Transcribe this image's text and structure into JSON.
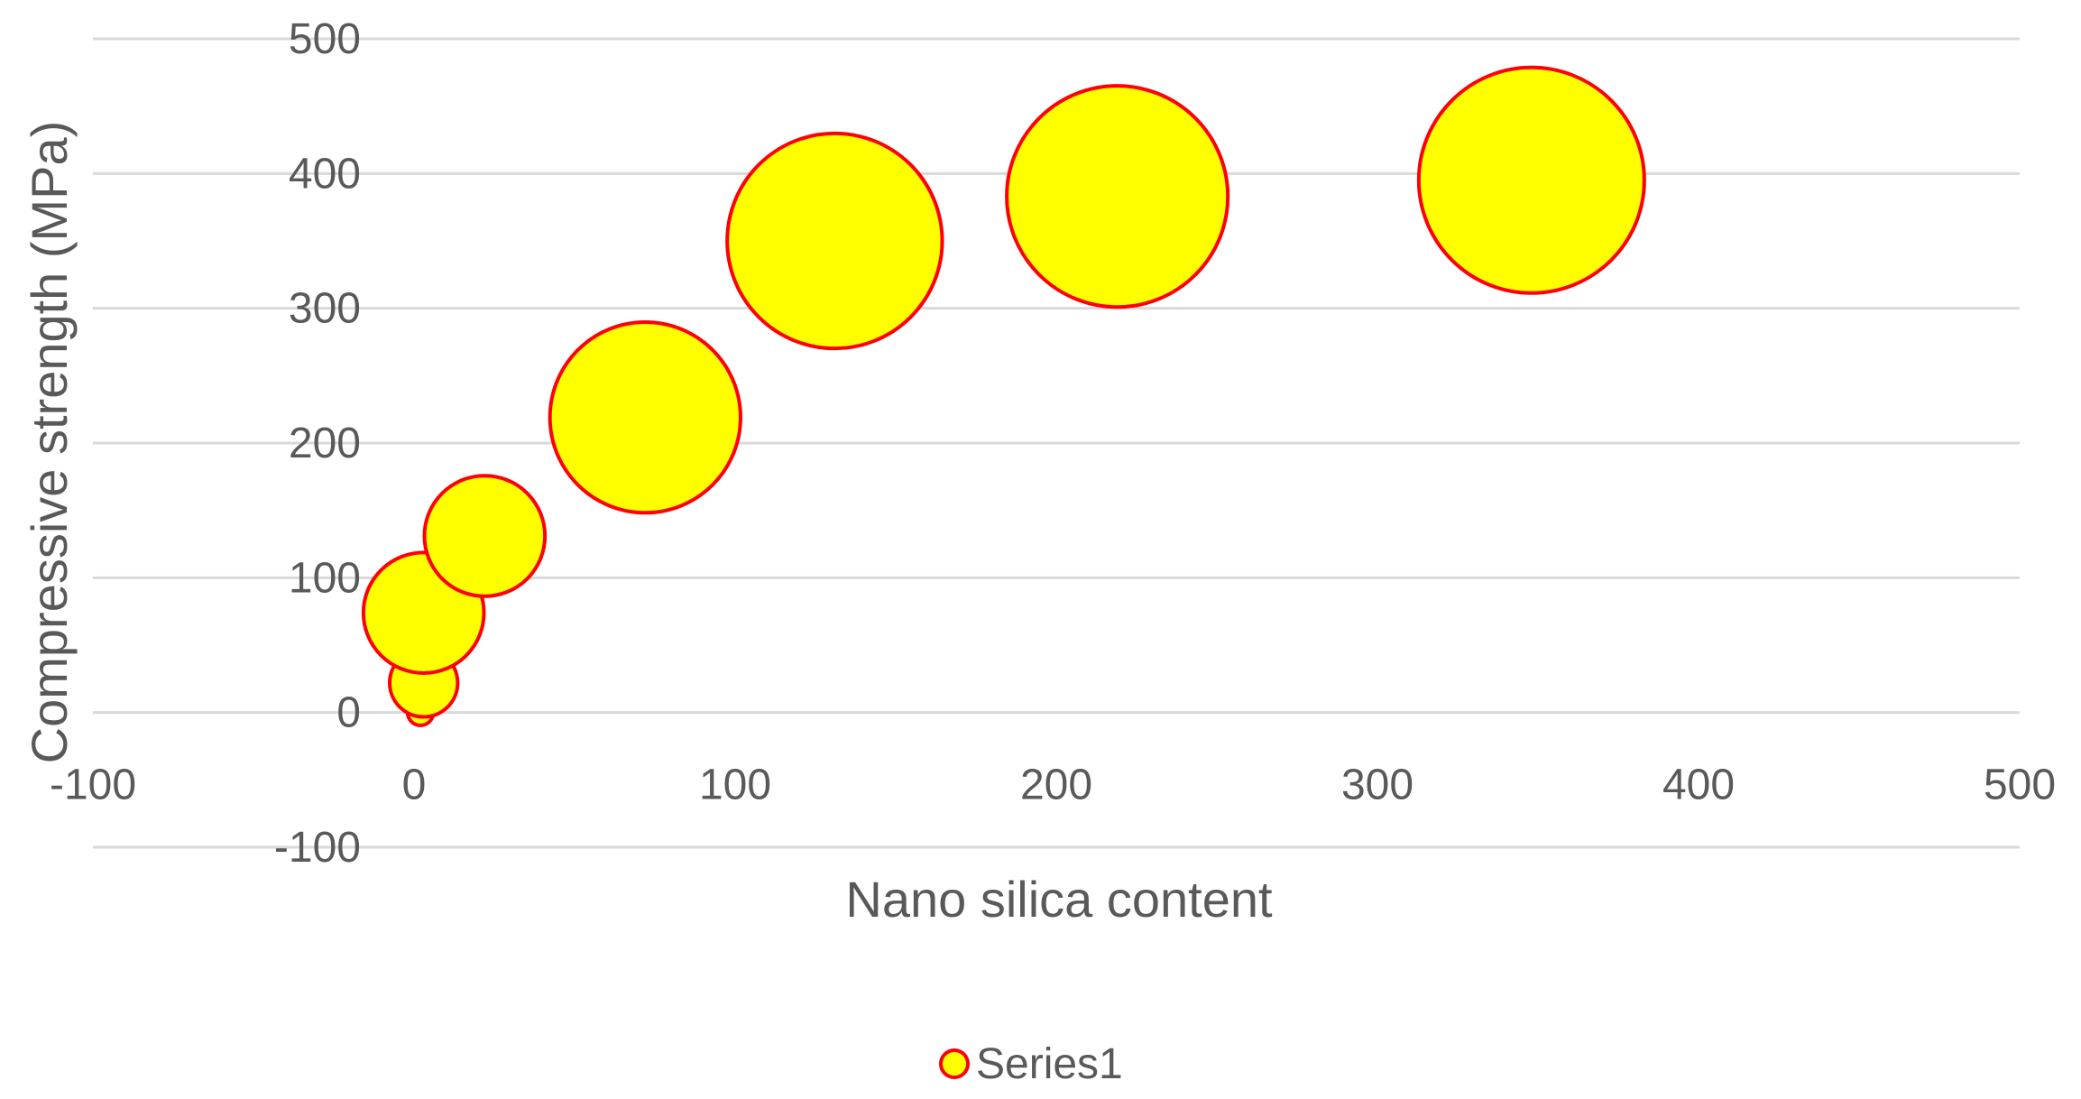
{
  "chart_data": {
    "type": "bubble",
    "title": "",
    "xlabel": "Nano silica content",
    "ylabel": "Compressive strength (MPa)",
    "xlim": [
      -100,
      500
    ],
    "ylim": [
      -100,
      500
    ],
    "xticks": [
      -100,
      0,
      100,
      200,
      300,
      400,
      500
    ],
    "yticks": [
      -100,
      0,
      100,
      200,
      300,
      400,
      500
    ],
    "grid": "horizontal",
    "legend_position": "bottom",
    "series": [
      {
        "name": "Series1",
        "fill_color": "#FFFF00",
        "edge_color": "#FF0000",
        "points": [
          {
            "x": 2,
            "y": 0,
            "size": 1
          },
          {
            "x": 3,
            "y": 22,
            "size": 7
          },
          {
            "x": 3,
            "y": 74,
            "size": 22
          },
          {
            "x": 22,
            "y": 131,
            "size": 22
          },
          {
            "x": 72,
            "y": 219,
            "size": 55
          },
          {
            "x": 131,
            "y": 350,
            "size": 70
          },
          {
            "x": 219,
            "y": 383,
            "size": 74
          },
          {
            "x": 348,
            "y": 395,
            "size": 77
          }
        ]
      }
    ]
  },
  "style": {
    "grid_color": "#D9D9D9",
    "text_color": "#595959"
  }
}
